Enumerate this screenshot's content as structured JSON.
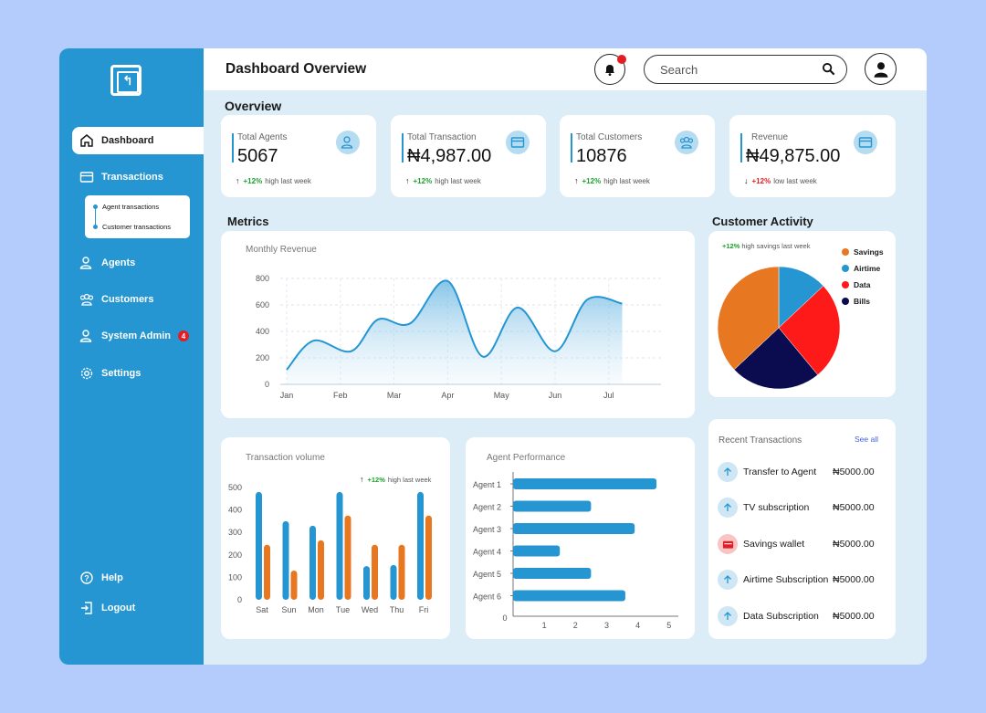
{
  "header": {
    "title": "Dashboard Overview",
    "search_placeholder": "Search"
  },
  "sidebar": {
    "logo_glyph": "↰",
    "items": [
      {
        "label": "Dashboard",
        "icon": "home-icon"
      },
      {
        "label": "Transactions",
        "icon": "card-icon"
      },
      {
        "label": "Agents",
        "icon": "user-icon"
      },
      {
        "label": "Customers",
        "icon": "users-icon"
      },
      {
        "label": "System Admin",
        "icon": "admin-icon",
        "badge": "4"
      },
      {
        "label": "Settings",
        "icon": "gear-icon"
      }
    ],
    "submenu": [
      "Agent transactions",
      "Customer transactions"
    ],
    "bottom": [
      {
        "label": "Help",
        "icon": "help-icon"
      },
      {
        "label": "Logout",
        "icon": "logout-icon"
      }
    ]
  },
  "overview": {
    "title": "Overview",
    "cards": [
      {
        "label": "Total Agents",
        "value": "5067",
        "change": "+12%",
        "note": "high last week",
        "direction": "up"
      },
      {
        "label": "Total Transaction",
        "value": "₦4,987.00",
        "change": "+12%",
        "note": "high last week",
        "direction": "up"
      },
      {
        "label": "Total Customers",
        "value": "10876",
        "change": "+12%",
        "note": "high last week",
        "direction": "up"
      },
      {
        "label": "Revenue",
        "value": "₦49,875.00",
        "change": "+12%",
        "note": "low last week",
        "direction": "down"
      }
    ]
  },
  "metrics": {
    "title": "Metrics"
  },
  "customer_activity": {
    "title": "Customer Activity",
    "change": "+12%",
    "note": "high savings last week"
  },
  "recent_transactions": {
    "title": "Recent Transactions",
    "see_all": "See all",
    "items": [
      {
        "label": "Transfer to Agent",
        "amount": "₦5000.00",
        "icon": "arrow-up-icon"
      },
      {
        "label": "TV subscription",
        "amount": "₦5000.00",
        "icon": "arrow-up-icon"
      },
      {
        "label": "Savings wallet",
        "amount": "₦5000.00",
        "icon": "wallet-icon"
      },
      {
        "label": "Airtime Subscription",
        "amount": "₦5000.00",
        "icon": "arrow-up-icon"
      },
      {
        "label": "Data Subscription",
        "amount": "₦5000.00",
        "icon": "arrow-up-icon"
      }
    ]
  },
  "transaction_volume_trend": {
    "change": "+12%",
    "note": "high last week"
  },
  "colors": {
    "primary": "#2596d2",
    "orange": "#e87722",
    "red": "#e41c23",
    "navy": "#0b0b4f",
    "green": "#19a22c"
  },
  "chart_data": [
    {
      "type": "area",
      "title": "Monthly Revenue",
      "x": [
        "Jan",
        "Feb",
        "Mar",
        "Apr",
        "May",
        "Jun",
        "Jul"
      ],
      "ylim": [
        0,
        800
      ],
      "yticks": [
        0,
        200,
        400,
        600,
        800
      ],
      "points": [
        [
          0,
          110
        ],
        [
          0.5,
          330
        ],
        [
          1.2,
          250
        ],
        [
          1.7,
          490
        ],
        [
          2.3,
          460
        ],
        [
          3,
          780
        ],
        [
          3.65,
          210
        ],
        [
          4.3,
          580
        ],
        [
          5,
          250
        ],
        [
          5.6,
          640
        ],
        [
          6.25,
          610
        ]
      ],
      "grid": true
    },
    {
      "type": "bar",
      "title": "Transaction volume",
      "categories": [
        "Sat",
        "Sun",
        "Mon",
        "Tue",
        "Wed",
        "Thu",
        "Fri"
      ],
      "ylim": [
        0,
        500
      ],
      "yticks": [
        0,
        100,
        200,
        300,
        400,
        500
      ],
      "series": [
        {
          "values": [
            480,
            350,
            330,
            480,
            150,
            155,
            480
          ]
        },
        {
          "values": [
            245,
            130,
            265,
            375,
            245,
            245,
            375
          ]
        }
      ]
    },
    {
      "type": "bar",
      "orientation": "horizontal",
      "title": "Agent Performance",
      "categories": [
        "Agent 1",
        "Agent 2",
        "Agent 3",
        "Agent 4",
        "Agent 5",
        "Agent 6"
      ],
      "values": [
        4.6,
        2.5,
        3.9,
        1.5,
        2.5,
        3.6
      ],
      "xticks": [
        0,
        1,
        2,
        3,
        4,
        5
      ],
      "xlim": [
        0,
        5
      ]
    },
    {
      "type": "pie",
      "categories": [
        "Savings",
        "Airtime",
        "Data",
        "Bills"
      ],
      "values": [
        37,
        13,
        26,
        24
      ],
      "colors": [
        "#e87722",
        "#2596d2",
        "#ff1a1a",
        "#0b0b4f"
      ]
    }
  ]
}
